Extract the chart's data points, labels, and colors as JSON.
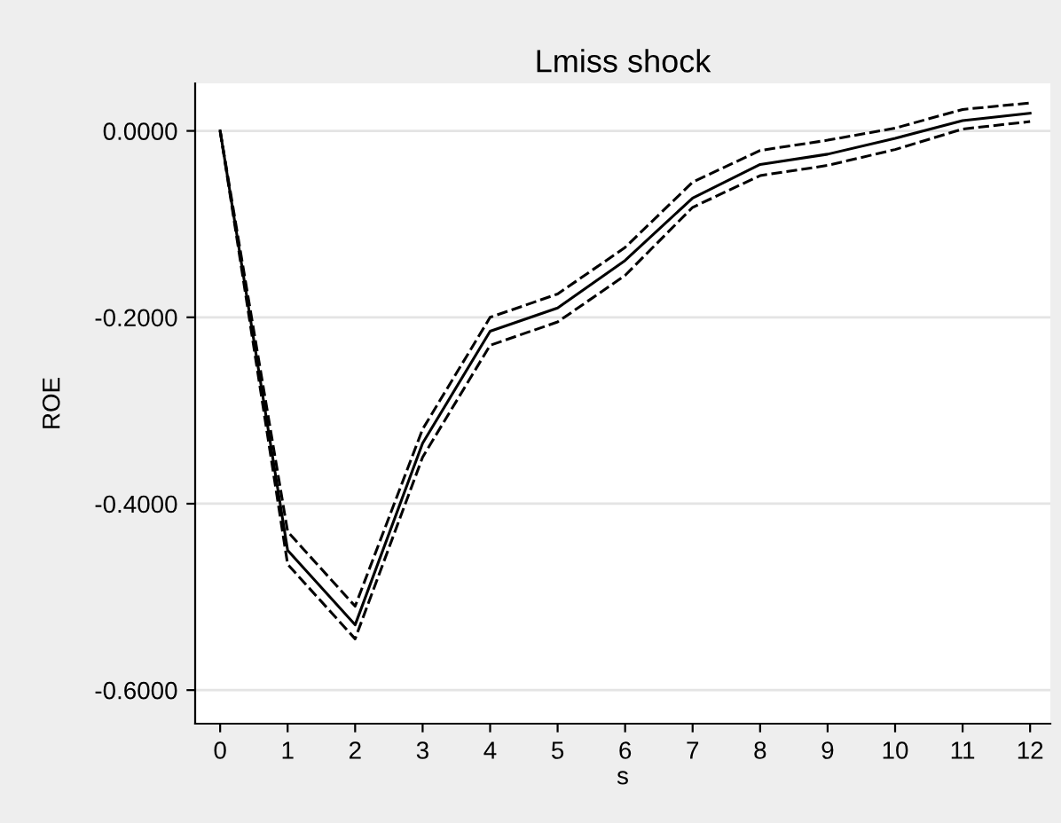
{
  "chart_data": {
    "type": "line",
    "title": "Lmiss shock",
    "xlabel": "s",
    "ylabel": "ROE",
    "x": [
      0,
      1,
      2,
      3,
      4,
      5,
      6,
      7,
      8,
      9,
      10,
      11,
      12
    ],
    "series": [
      {
        "color": "#000000",
        "line_style": "solid",
        "values": [
          0,
          -0.45,
          -0.53,
          -0.335,
          -0.215,
          -0.19,
          -0.139,
          -0.072,
          -0.036,
          -0.025,
          -0.008,
          0.011,
          0.019
        ]
      },
      {
        "color": "#000000",
        "line_style": "dashed",
        "values": [
          0,
          -0.43,
          -0.51,
          -0.32,
          -0.2,
          -0.175,
          -0.125,
          -0.055,
          -0.021,
          -0.01,
          0.003,
          0.023,
          0.03
        ]
      },
      {
        "color": "#000000",
        "line_style": "dashed",
        "values": [
          0,
          -0.465,
          -0.545,
          -0.35,
          -0.23,
          -0.205,
          -0.155,
          -0.082,
          -0.048,
          -0.037,
          -0.02,
          0.002,
          0.01
        ]
      }
    ],
    "xlim": [
      -0.37,
      12.3
    ],
    "xticks": [
      0,
      1,
      2,
      3,
      4,
      5,
      6,
      7,
      8,
      9,
      10,
      11,
      12
    ],
    "ylim": [
      -0.636,
      0.051
    ],
    "yticks": [
      {
        "value": -0.6,
        "label": "-0.6000"
      },
      {
        "value": -0.4,
        "label": "-0.4000"
      },
      {
        "value": -0.2,
        "label": "-0.2000"
      },
      {
        "value": 0,
        "label": "0.0000"
      }
    ],
    "grid": "y",
    "legend": false,
    "marker": "none"
  }
}
